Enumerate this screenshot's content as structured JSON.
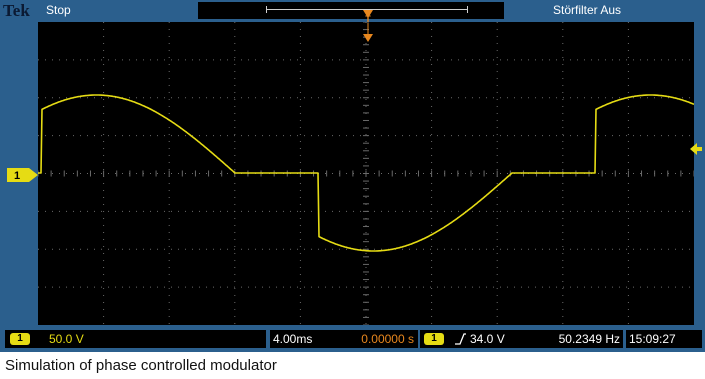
{
  "colors": {
    "frame": "#2b5f8d",
    "screen": "#000000",
    "trace": "#e6dc14",
    "marker_orange": "#e8871e",
    "grid": "#6a6a6a"
  },
  "top_bar": {
    "brand": "Tek",
    "run_status": "Stop",
    "filter_status": "Störfilter Aus"
  },
  "channel_marker": {
    "label": "1",
    "icon": "ch1-ground-marker-icon"
  },
  "status_bar": {
    "ch1_label": "1",
    "ch1_scale": "50.0 V",
    "time_scale": "4.00ms",
    "trigger_delay": "0.00000 s",
    "trigger_source": "1",
    "trigger_icon": "rising-edge-icon",
    "trigger_slope_glyph": "⌐",
    "trigger_level": "34.0 V",
    "frequency": "50.2349 Hz",
    "clock": "15:09:27"
  },
  "caption": "Simulation of phase controlled modulator"
}
